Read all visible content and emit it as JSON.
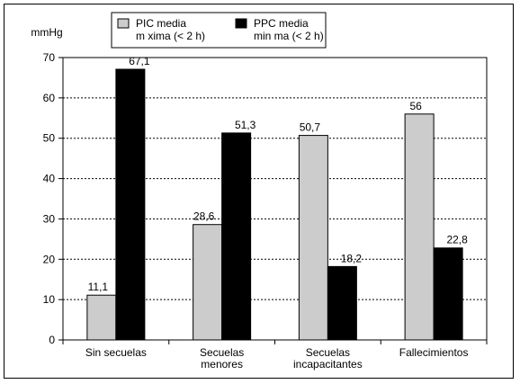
{
  "chart_data": {
    "type": "bar",
    "ylabel": "mmHg",
    "ylim": [
      0,
      70
    ],
    "yticks": [
      0,
      10,
      20,
      30,
      40,
      50,
      60,
      70
    ],
    "grid": "horizontal dashed",
    "legend_position": "top",
    "categories": [
      [
        "Sin secuelas"
      ],
      [
        "Secuelas",
        "menores"
      ],
      [
        "Secuelas",
        "incapacitantes"
      ],
      [
        "Fallecimientos"
      ]
    ],
    "series": [
      {
        "name": [
          "PIC media",
          "m xima (< 2 h)"
        ],
        "color": "#cccccc",
        "values": [
          11.1,
          28.6,
          50.7,
          56
        ],
        "labels": [
          "11,1",
          "28,6",
          "50,7",
          "56"
        ]
      },
      {
        "name": [
          "PPC media",
          "min ma (< 2 h)"
        ],
        "color": "#000000",
        "values": [
          67.1,
          51.3,
          18.2,
          22.8
        ],
        "labels": [
          "67,1",
          "51,3",
          "18,2",
          "22,8"
        ]
      }
    ]
  }
}
